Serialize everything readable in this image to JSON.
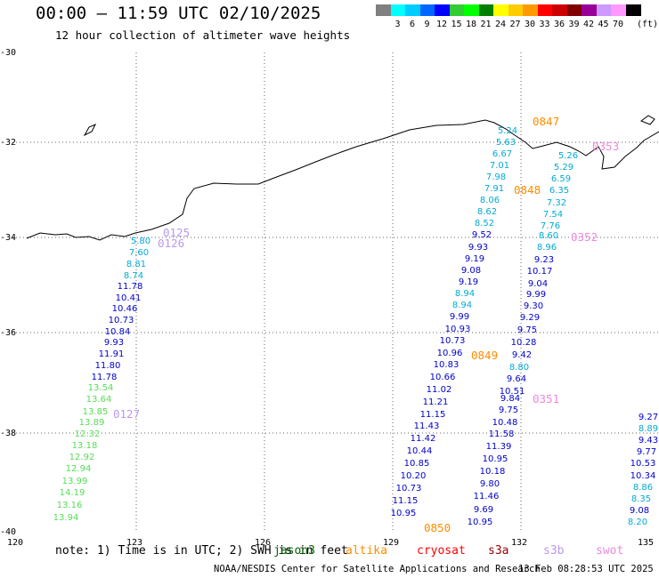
{
  "header": {
    "title": "00:00 – 11:59 UTC 02/10/2025",
    "subtitle": "12 hour collection of altimeter wave heights"
  },
  "legend": {
    "unit": "(ft)",
    "items": [
      {
        "color": "#808080",
        "label": ""
      },
      {
        "color": "#00ffff",
        "label": "3"
      },
      {
        "color": "#00ccff",
        "label": "6"
      },
      {
        "color": "#0066ff",
        "label": "9"
      },
      {
        "color": "#0000ff",
        "label": "12"
      },
      {
        "color": "#33cc33",
        "label": "15"
      },
      {
        "color": "#00ff00",
        "label": "18"
      },
      {
        "color": "#008000",
        "label": "21"
      },
      {
        "color": "#ffff00",
        "label": "24"
      },
      {
        "color": "#ffcc00",
        "label": "27"
      },
      {
        "color": "#ff9900",
        "label": "30"
      },
      {
        "color": "#ff0000",
        "label": "33"
      },
      {
        "color": "#cc0000",
        "label": "36"
      },
      {
        "color": "#800000",
        "label": "39"
      },
      {
        "color": "#990099",
        "label": "42"
      },
      {
        "color": "#cc99ff",
        "label": "45"
      },
      {
        "color": "#ff99ff",
        "label": "70"
      },
      {
        "color": "#000000",
        "label": ""
      }
    ]
  },
  "map": {
    "lat_ticks": [
      "-30",
      "-32",
      "-34",
      "-36",
      "-38",
      "-40"
    ],
    "lon_ticks": [
      "120",
      "123",
      "126",
      "129",
      "132",
      "135"
    ],
    "track_colors": {
      "c": "#00aad4",
      "b": "#0000cc",
      "g": "#55dd55",
      "l": "#7fd0f0",
      "p": "#ee88dd",
      "o": "#ff8c00",
      "v": "#bb99ee"
    },
    "pass_labels": [
      {
        "text": "0125",
        "color": "#bb99ee"
      },
      {
        "text": "0126",
        "color": "#bb99ee"
      },
      {
        "text": "0127",
        "color": "#bb99ee"
      },
      {
        "text": "0847",
        "color": "#ff8c00"
      },
      {
        "text": "0848",
        "color": "#ff8c00"
      },
      {
        "text": "0849",
        "color": "#ff8c00"
      },
      {
        "text": "0850",
        "color": "#ff8c00"
      },
      {
        "text": "0353",
        "color": "#ee88dd"
      },
      {
        "text": "0352",
        "color": "#ee88dd"
      },
      {
        "text": "0351",
        "color": "#ee88dd"
      }
    ],
    "tracks": [
      {
        "name": "track-0126",
        "v": [
          [
            "5.80",
            "c"
          ],
          [
            "7.60",
            "c"
          ],
          [
            "8.81",
            "c"
          ],
          [
            "8.74",
            "c"
          ],
          [
            "11.78",
            "b"
          ],
          [
            "10.41",
            "b"
          ],
          [
            "10.46",
            "b"
          ],
          [
            "10.73",
            "b"
          ],
          [
            "10.84",
            "b"
          ],
          [
            "9.93",
            "b"
          ],
          [
            "11.91",
            "b"
          ],
          [
            "11.80",
            "b"
          ],
          [
            "11.78",
            "b"
          ],
          [
            "13.54",
            "g"
          ],
          [
            "13.64",
            "g"
          ],
          [
            "13.85",
            "g"
          ],
          [
            "13.89",
            "g"
          ],
          [
            "12.32",
            "g"
          ],
          [
            "13.18",
            "g"
          ],
          [
            "12.92",
            "g"
          ],
          [
            "12.94",
            "g"
          ],
          [
            "13.99",
            "g"
          ],
          [
            "14.19",
            "g"
          ],
          [
            "13.16",
            "g"
          ],
          [
            "13.94",
            "g"
          ]
        ]
      },
      {
        "name": "track-0848-0849",
        "v": [
          [
            "5.24",
            "c"
          ],
          [
            "5.63",
            "c"
          ],
          [
            "6.67",
            "c"
          ],
          [
            "7.01",
            "c"
          ],
          [
            "7.98",
            "c"
          ],
          [
            "7.91",
            "c"
          ],
          [
            "8.06",
            "c"
          ],
          [
            "8.62",
            "c"
          ],
          [
            "8.52",
            "c"
          ],
          [
            "9.52",
            "b"
          ],
          [
            "9.93",
            "b"
          ],
          [
            "9.19",
            "b"
          ],
          [
            "9.08",
            "b"
          ],
          [
            "9.19",
            "b"
          ],
          [
            "8.94",
            "c"
          ],
          [
            "8.94",
            "c"
          ],
          [
            "9.99",
            "b"
          ],
          [
            "10.93",
            "b"
          ],
          [
            "10.73",
            "b"
          ],
          [
            "10.96",
            "b"
          ],
          [
            "10.83",
            "b"
          ],
          [
            "10.66",
            "b"
          ],
          [
            "11.02",
            "b"
          ],
          [
            "11.21",
            "b"
          ],
          [
            "11.15",
            "b"
          ],
          [
            "11.43",
            "b"
          ],
          [
            "11.42",
            "b"
          ],
          [
            "10.44",
            "b"
          ],
          [
            "10.85",
            "b"
          ],
          [
            "10.20",
            "b"
          ],
          [
            "10.73",
            "b"
          ],
          [
            "11.15",
            "b"
          ],
          [
            "10.95",
            "b"
          ]
        ]
      },
      {
        "name": "track-0352",
        "v": [
          [
            "5.26",
            "c"
          ],
          [
            "5.29",
            "c"
          ],
          [
            "6.59",
            "c"
          ],
          [
            "6.35",
            "c"
          ],
          [
            "7.32",
            "c"
          ],
          [
            "7.54",
            "c"
          ],
          [
            "7.76",
            "c"
          ],
          [
            "8.60",
            "c"
          ],
          [
            "8.96",
            "c"
          ],
          [
            "9.23",
            "b"
          ],
          [
            "10.17",
            "b"
          ],
          [
            "9.04",
            "b"
          ],
          [
            "9.99",
            "b"
          ],
          [
            "9.30",
            "b"
          ],
          [
            "9.29",
            "b"
          ],
          [
            "9.75",
            "b"
          ],
          [
            "10.28",
            "b"
          ],
          [
            "9.42",
            "b"
          ],
          [
            "8.80",
            "c"
          ],
          [
            "9.64",
            "b"
          ],
          [
            "10.51",
            "b"
          ],
          [
            "9.84",
            "b"
          ],
          [
            "9.75",
            "b"
          ],
          [
            "10.48",
            "b"
          ],
          [
            "11.58",
            "b"
          ],
          [
            "11.39",
            "b"
          ],
          [
            "10.95",
            "b"
          ],
          [
            "10.18",
            "b"
          ],
          [
            "9.80",
            "b"
          ],
          [
            "11.46",
            "b"
          ],
          [
            "9.69",
            "b"
          ],
          [
            "10.95",
            "b"
          ]
        ]
      },
      {
        "name": "track-0351",
        "v": [
          [
            "9.27",
            "b"
          ],
          [
            "8.89",
            "c"
          ],
          [
            "9.43",
            "b"
          ],
          [
            "9.77",
            "b"
          ],
          [
            "10.53",
            "b"
          ],
          [
            "10.34",
            "b"
          ],
          [
            "8.86",
            "c"
          ],
          [
            "8.35",
            "c"
          ],
          [
            "9.08",
            "b"
          ],
          [
            "8.20",
            "c"
          ]
        ]
      }
    ]
  },
  "footer": {
    "note": "note: 1) Time is in UTC; 2) SWH is in feet",
    "satellites": [
      {
        "name": "jason3",
        "color": "#006400"
      },
      {
        "name": "altika",
        "color": "#ff8c00"
      },
      {
        "name": "cryosat",
        "color": "#ff0000"
      },
      {
        "name": "s3a",
        "color": "#990000"
      },
      {
        "name": "s3b",
        "color": "#bb99ee"
      },
      {
        "name": "swot",
        "color": "#ee88dd"
      }
    ],
    "credit": "NOAA/NESDIS Center for Satellite Applications and Research",
    "timestamp": "13 Feb 08:28:53 UTC 2025"
  }
}
